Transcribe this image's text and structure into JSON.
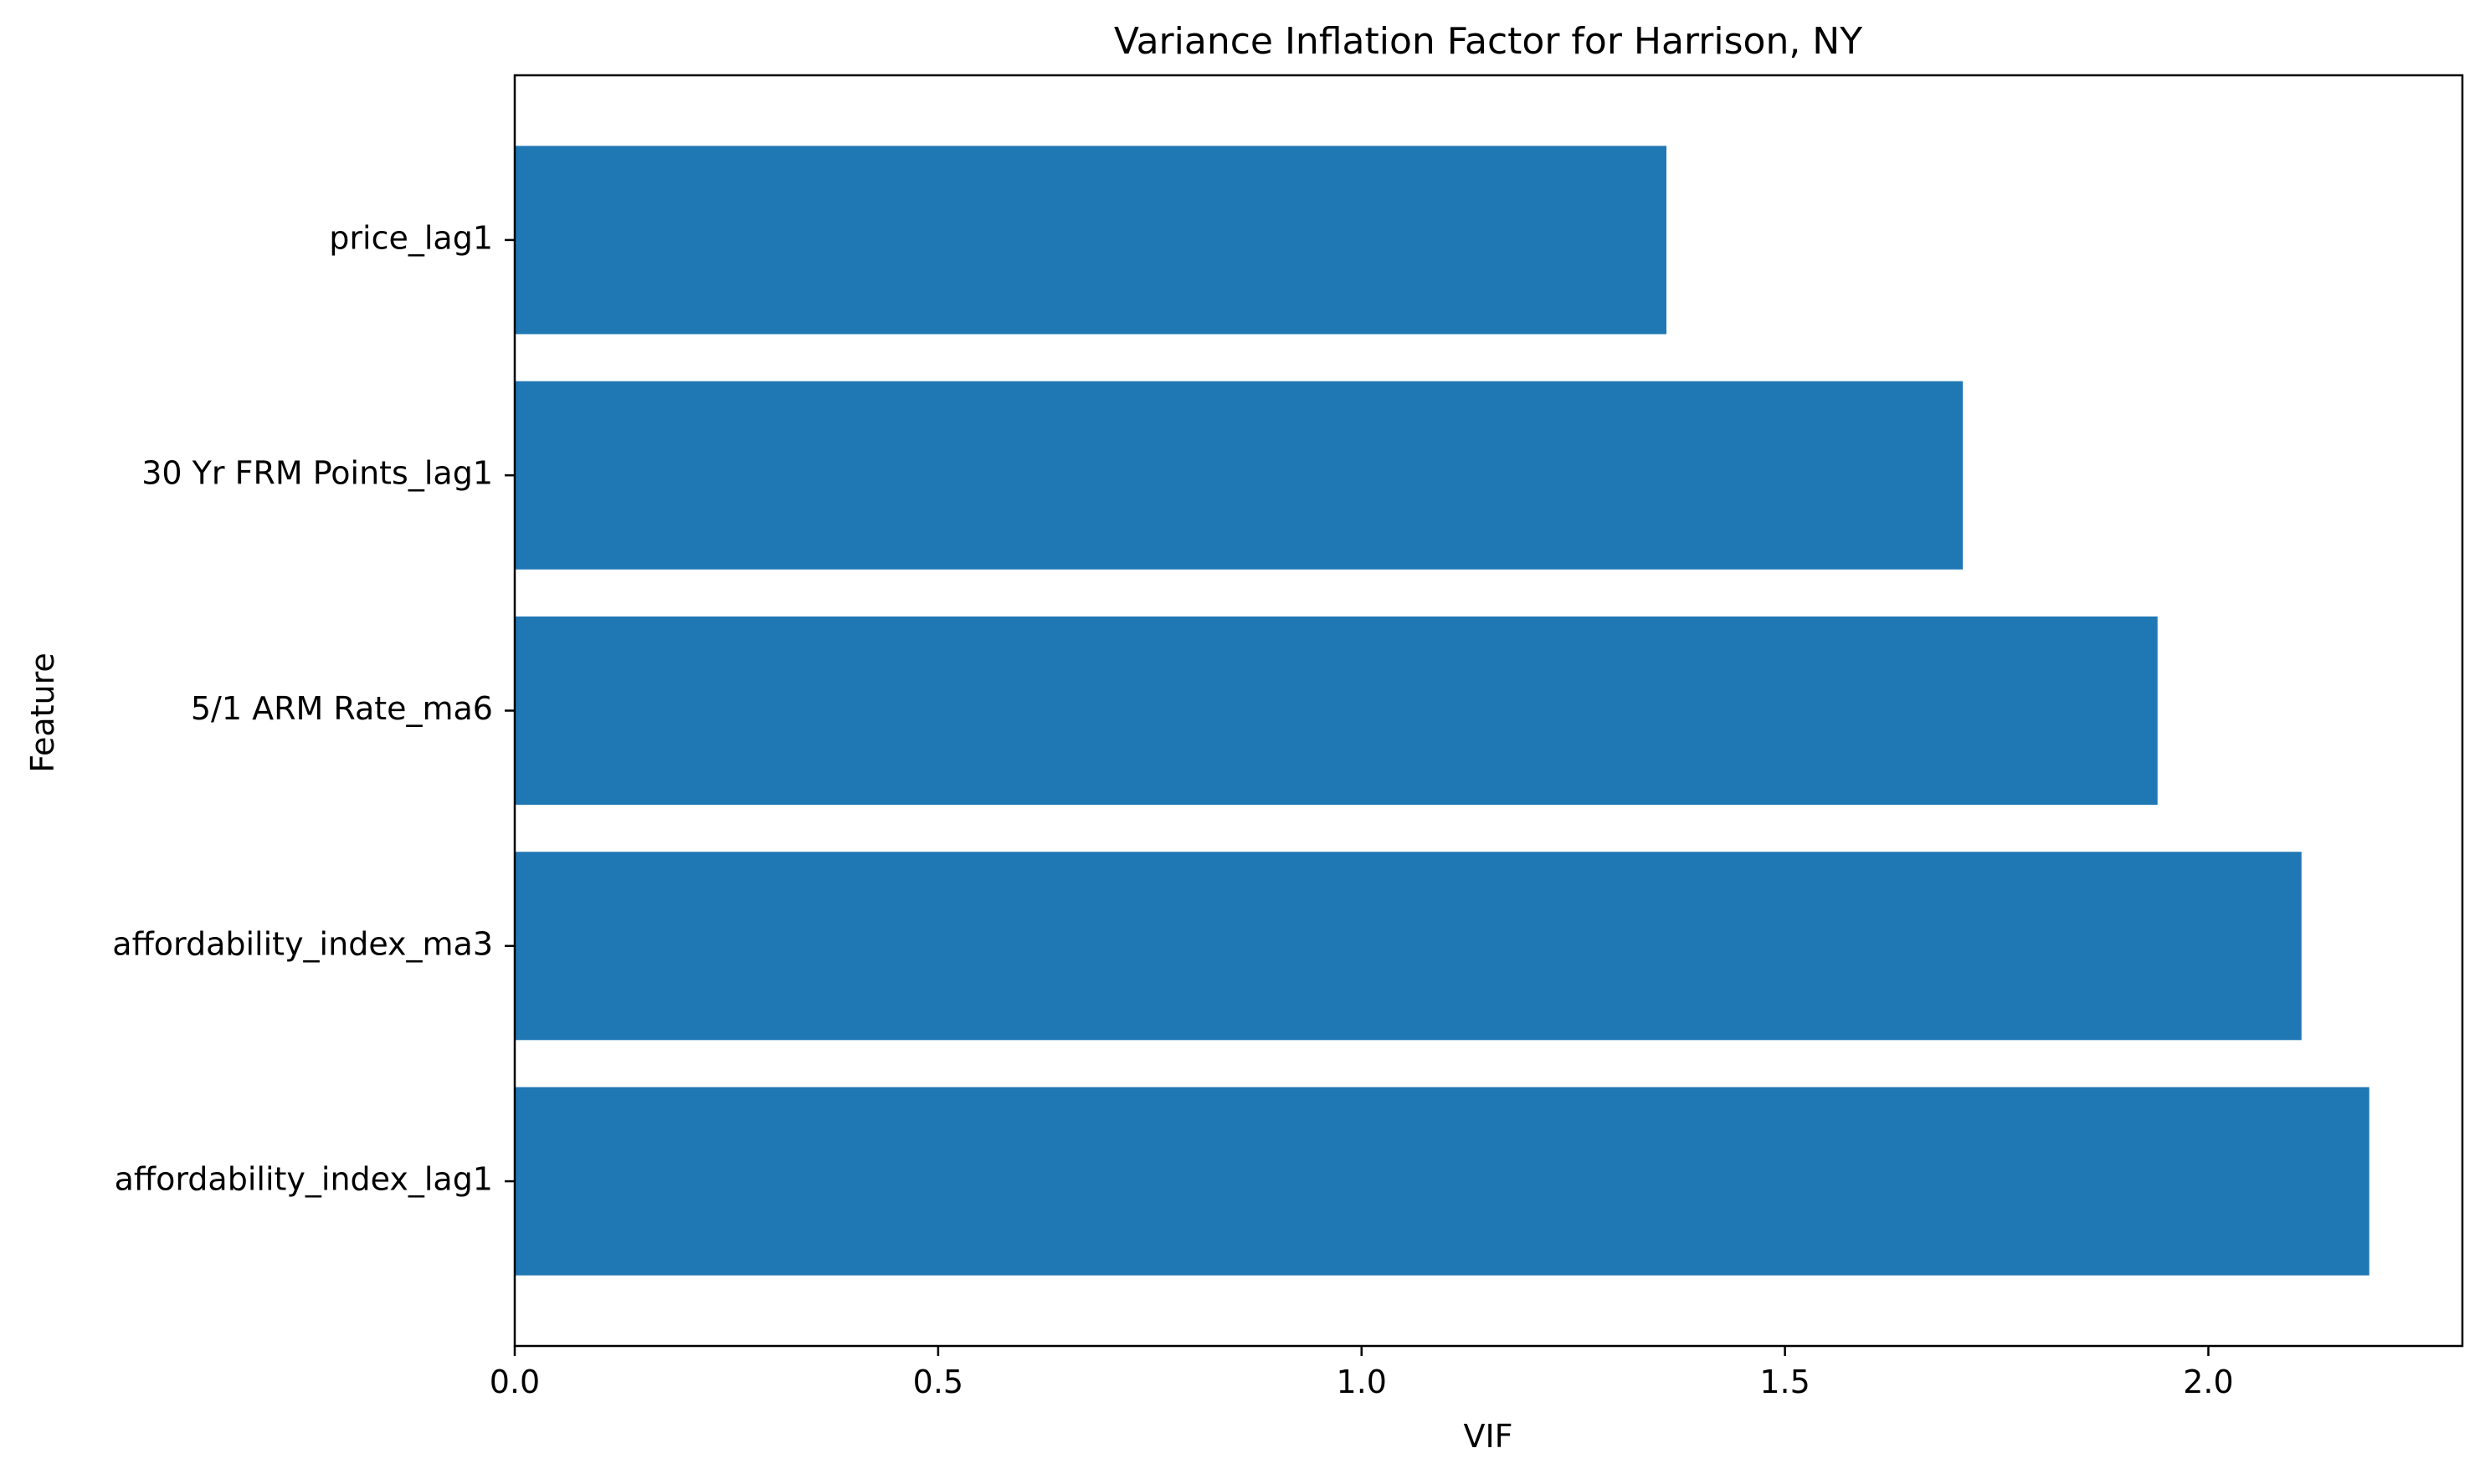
{
  "chart_data": {
    "type": "bar",
    "orientation": "horizontal",
    "title": "Variance Inflation Factor for Harrison, NY",
    "xlabel": "VIF",
    "ylabel": "Feature",
    "categories": [
      "price_lag1",
      "30 Yr FRM Points_lag1",
      "5/1 ARM Rate_ma6",
      "affordability_index_ma3",
      "affordability_index_lag1"
    ],
    "values": [
      1.36,
      1.71,
      1.94,
      2.11,
      2.19
    ],
    "xlim": [
      0,
      2.3
    ],
    "xticks": [
      "0.0",
      "0.5",
      "1.0",
      "1.5",
      "2.0"
    ],
    "bar_color": "#1f77b4",
    "grid": false,
    "legend": "none"
  }
}
